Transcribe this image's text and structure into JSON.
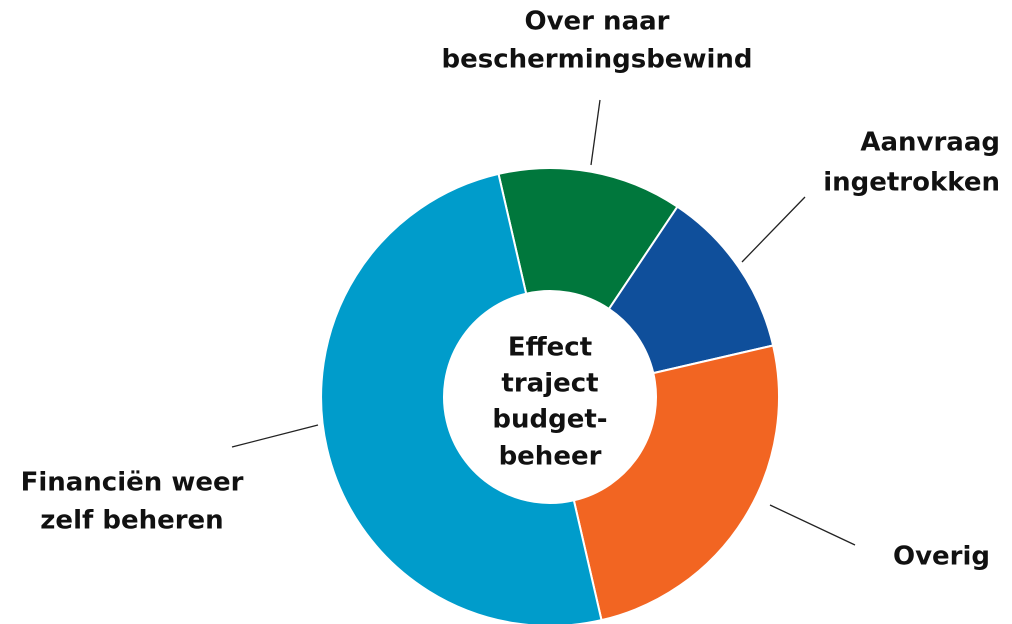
{
  "chart_data": {
    "type": "donut",
    "title": [
      "Effect",
      "traject",
      "budget-",
      "beheer"
    ],
    "categories": [
      [
        "Over naar",
        "beschermingsbewind"
      ],
      [
        "Aanvraag",
        "ingetrokken"
      ],
      [
        "Overig"
      ],
      [
        "Financiën weer",
        "zelf beheren"
      ]
    ],
    "values": [
      13,
      12,
      25,
      50
    ],
    "colors": [
      "#00773c",
      "#0f4f9b",
      "#f26522",
      "#009ccb"
    ]
  }
}
